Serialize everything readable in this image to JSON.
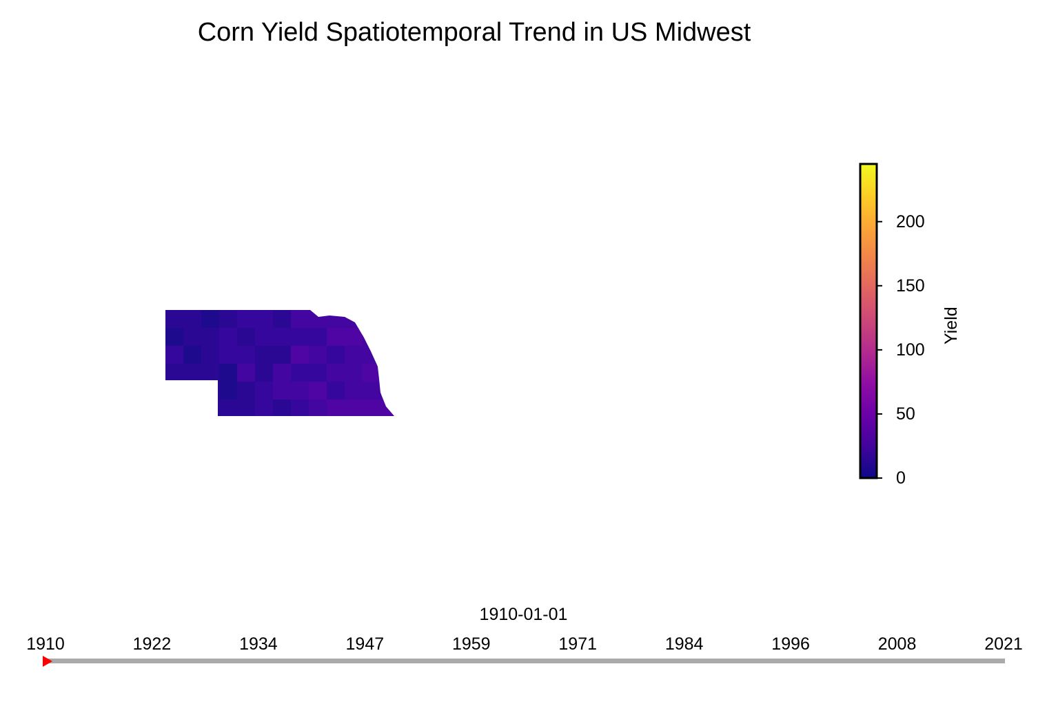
{
  "title": "Corn Yield Spatiotemporal Trend in US Midwest",
  "colorbar": {
    "label": "Yield",
    "colormap": "plasma",
    "range": [
      0,
      245
    ],
    "ticks": [
      "0",
      "50",
      "100",
      "150",
      "200"
    ],
    "tick_values": [
      0,
      50,
      100,
      150,
      200
    ]
  },
  "timeline": {
    "current_date": "1910-01-01",
    "years": [
      "1910",
      "1922",
      "1934",
      "1947",
      "1959",
      "1971",
      "1984",
      "1996",
      "2008",
      "2021"
    ],
    "marker_color": "#ff0000",
    "track_color": "#aaaaaa"
  },
  "map": {
    "region": "Nebraska",
    "fill_colors": [
      "#1e0a8c",
      "#2a0894",
      "#36079c",
      "#4406a0",
      "#4e05a4",
      "#5c02a8"
    ]
  }
}
